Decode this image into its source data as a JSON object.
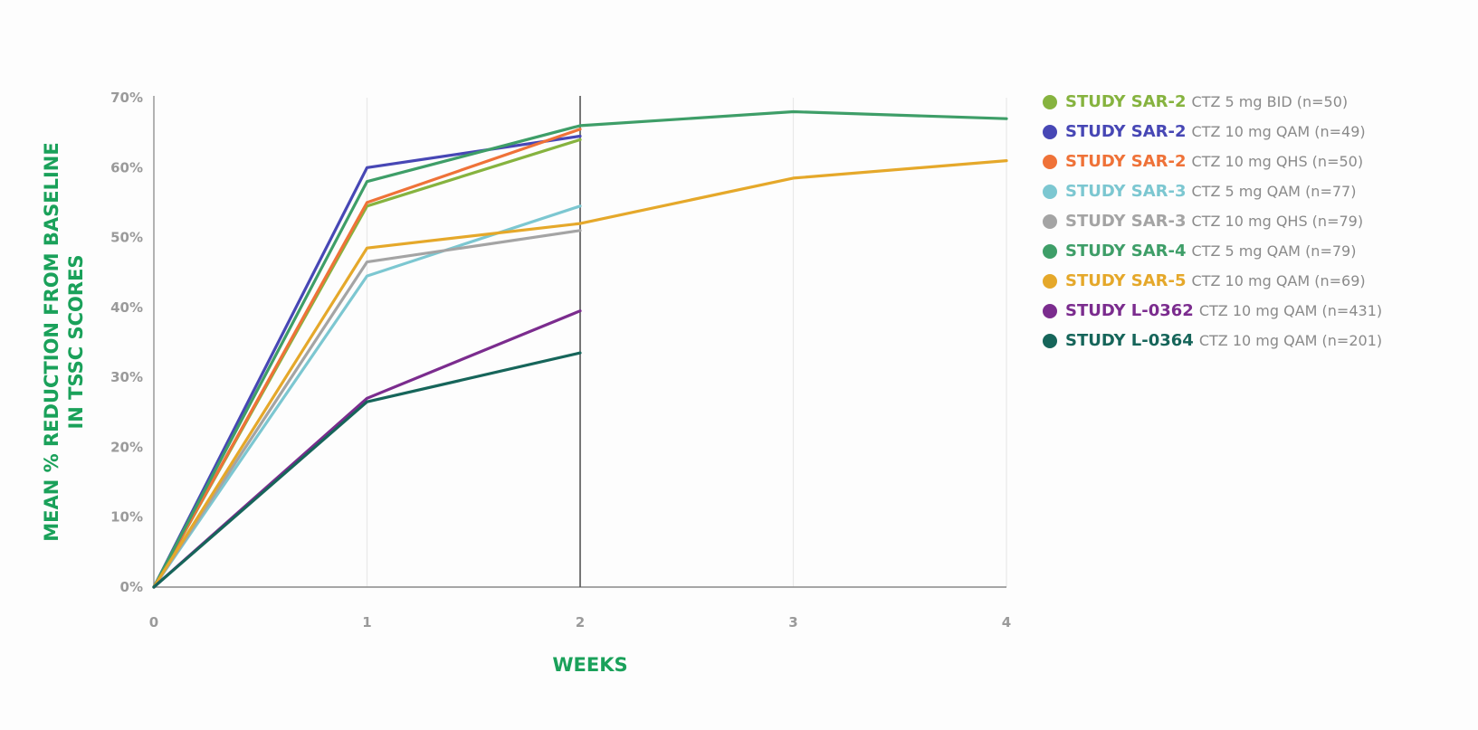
{
  "chart_data": {
    "type": "line",
    "xlabel": "WEEKS",
    "ylabel_lines": [
      "MEAN % REDUCTION FROM BASELINE",
      "IN TSSC SCORES"
    ],
    "xlim": [
      0,
      4
    ],
    "ylim": [
      0,
      70
    ],
    "x_ticks": [
      "0",
      "1",
      "2",
      "3",
      "4"
    ],
    "y_ticks": [
      "0%",
      "10%",
      "20%",
      "30%",
      "40%",
      "50%",
      "60%",
      "70%"
    ],
    "grid": "vertical",
    "reference_line_x": 2,
    "legend_position": "right",
    "axis_title_color": "#1aa15a",
    "series": [
      {
        "study": "STUDY SAR-2",
        "name": "CTZ 5 mg BID (n=50)",
        "color": "#86b33f",
        "x": [
          0,
          1,
          2
        ],
        "y": [
          0,
          54.5,
          64
        ]
      },
      {
        "study": "STUDY SAR-2",
        "name": "CTZ 10 mg QAM (n=49)",
        "color": "#4747b5",
        "x": [
          0,
          1,
          2
        ],
        "y": [
          0,
          60,
          64.5
        ]
      },
      {
        "study": "STUDY SAR-2",
        "name": "CTZ 10 mg QHS (n=50)",
        "color": "#ef7238",
        "x": [
          0,
          1,
          2
        ],
        "y": [
          0,
          55,
          65.5
        ]
      },
      {
        "study": "STUDY SAR-3",
        "name": "CTZ 5 mg QAM (n=77)",
        "color": "#7cc7d1",
        "x": [
          0,
          1,
          2
        ],
        "y": [
          0,
          44.5,
          54.5
        ]
      },
      {
        "study": "STUDY SAR-3",
        "name": "CTZ 10 mg QHS (n=79)",
        "color": "#a4a4a4",
        "x": [
          0,
          1,
          2
        ],
        "y": [
          0,
          46.5,
          51
        ]
      },
      {
        "study": "STUDY SAR-4",
        "name": "CTZ 5 mg QAM (n=79)",
        "color": "#3e9e68",
        "x": [
          0,
          1,
          2,
          3,
          4
        ],
        "y": [
          0,
          58,
          66,
          68,
          67
        ]
      },
      {
        "study": "STUDY SAR-5",
        "name": "CTZ 10 mg QAM (n=69)",
        "color": "#e5a82a",
        "x": [
          0,
          1,
          2,
          3,
          4
        ],
        "y": [
          0,
          48.5,
          52,
          58.5,
          61
        ]
      },
      {
        "study": "STUDY L-0362",
        "name": "CTZ 10 mg QAM (n=431)",
        "color": "#7b2c8e",
        "x": [
          0,
          1,
          2
        ],
        "y": [
          0,
          27,
          39.5
        ]
      },
      {
        "study": "STUDY L-0364",
        "name": "CTZ 10 mg QAM (n=201)",
        "color": "#16655a",
        "x": [
          0,
          1,
          2
        ],
        "y": [
          0,
          26.5,
          33.5
        ]
      }
    ]
  }
}
